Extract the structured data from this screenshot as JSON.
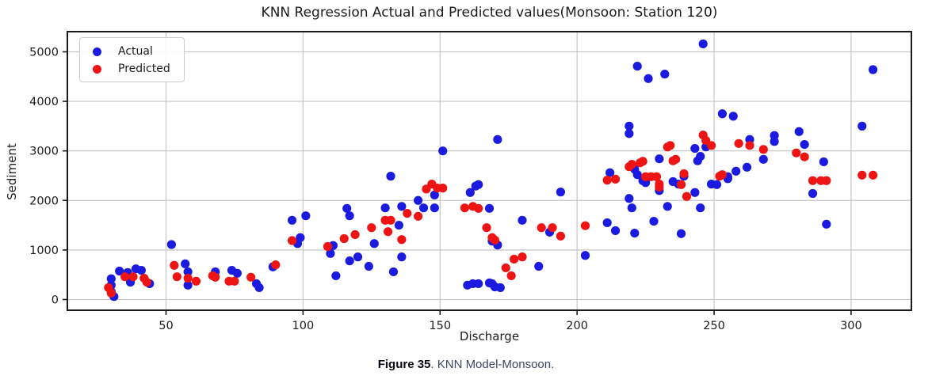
{
  "figure": {
    "caption_bold": "Figure 35",
    "caption_rest": ". KNN Model-Monsoon."
  },
  "chart_data": {
    "type": "scatter",
    "title": "KNN Regression Actual and Predicted values(Monsoon: Station 120)",
    "xlabel": "Discharge",
    "ylabel": "Sediment",
    "xlim": [
      14,
      322
    ],
    "ylim": [
      -216,
      5407
    ],
    "x_ticks": [
      50,
      100,
      150,
      200,
      250,
      300
    ],
    "y_ticks": [
      0,
      1000,
      2000,
      3000,
      4000,
      5000
    ],
    "grid": true,
    "legend_position": "upper left",
    "series": [
      {
        "name": "Actual",
        "color": "#1b1be0",
        "points": [
          [
            30,
            420
          ],
          [
            30,
            290
          ],
          [
            30,
            160
          ],
          [
            31,
            60
          ],
          [
            33,
            575
          ],
          [
            36,
            545
          ],
          [
            37,
            350
          ],
          [
            39,
            620
          ],
          [
            41,
            590
          ],
          [
            44,
            320
          ],
          [
            52,
            1110
          ],
          [
            57,
            720
          ],
          [
            58,
            560
          ],
          [
            58,
            290
          ],
          [
            68,
            560
          ],
          [
            74,
            590
          ],
          [
            76,
            530
          ],
          [
            83,
            320
          ],
          [
            84,
            240
          ],
          [
            89,
            660
          ],
          [
            96,
            1600
          ],
          [
            101,
            1690
          ],
          [
            98,
            1130
          ],
          [
            99,
            1250
          ],
          [
            110,
            930
          ],
          [
            111,
            1090
          ],
          [
            112,
            480
          ],
          [
            116,
            1840
          ],
          [
            117,
            1690
          ],
          [
            117,
            780
          ],
          [
            120,
            860
          ],
          [
            124,
            670
          ],
          [
            126,
            1130
          ],
          [
            130,
            1850
          ],
          [
            132,
            2490
          ],
          [
            133,
            560
          ],
          [
            135,
            1500
          ],
          [
            136,
            1880
          ],
          [
            136,
            860
          ],
          [
            142,
            2000
          ],
          [
            144,
            1850
          ],
          [
            148,
            1850
          ],
          [
            148,
            2110
          ],
          [
            151,
            3000
          ],
          [
            160,
            290
          ],
          [
            162,
            320
          ],
          [
            164,
            320
          ],
          [
            168,
            335
          ],
          [
            169,
            320
          ],
          [
            170,
            255
          ],
          [
            172,
            240
          ],
          [
            161,
            2160
          ],
          [
            163,
            2290
          ],
          [
            164,
            2320
          ],
          [
            168,
            1840
          ],
          [
            169,
            1180
          ],
          [
            171,
            1100
          ],
          [
            171,
            3230
          ],
          [
            180,
            1600
          ],
          [
            186,
            670
          ],
          [
            190,
            1360
          ],
          [
            194,
            2170
          ],
          [
            203,
            890
          ],
          [
            211,
            1550
          ],
          [
            212,
            2560
          ],
          [
            214,
            1390
          ],
          [
            219,
            2040
          ],
          [
            220,
            1850
          ],
          [
            221,
            1340
          ],
          [
            221,
            2630
          ],
          [
            222,
            2520
          ],
          [
            224,
            2400
          ],
          [
            225,
            2360
          ],
          [
            228,
            1580
          ],
          [
            230,
            2200
          ],
          [
            230,
            2840
          ],
          [
            233,
            1880
          ],
          [
            235,
            2380
          ],
          [
            237,
            2330
          ],
          [
            238,
            1330
          ],
          [
            239,
            2490
          ],
          [
            243,
            2160
          ],
          [
            243,
            3050
          ],
          [
            244,
            2800
          ],
          [
            245,
            1850
          ],
          [
            245,
            2890
          ],
          [
            246,
            5160
          ],
          [
            247,
            3080
          ],
          [
            249,
            2330
          ],
          [
            251,
            2320
          ],
          [
            253,
            3750
          ],
          [
            255,
            2440
          ],
          [
            255,
            2480
          ],
          [
            257,
            3700
          ],
          [
            258,
            2590
          ],
          [
            219,
            3500
          ],
          [
            219,
            3350
          ],
          [
            222,
            4710
          ],
          [
            226,
            4460
          ],
          [
            232,
            4550
          ],
          [
            262,
            2670
          ],
          [
            263,
            3230
          ],
          [
            268,
            2830
          ],
          [
            272,
            3310
          ],
          [
            272,
            3190
          ],
          [
            281,
            3390
          ],
          [
            283,
            3130
          ],
          [
            286,
            2140
          ],
          [
            290,
            2780
          ],
          [
            291,
            1520
          ],
          [
            304,
            3500
          ],
          [
            308,
            4640
          ]
        ]
      },
      {
        "name": "Predicted",
        "color": "#ef1414",
        "points": [
          [
            29,
            240
          ],
          [
            30,
            130
          ],
          [
            35,
            460
          ],
          [
            38,
            460
          ],
          [
            42,
            430
          ],
          [
            43,
            350
          ],
          [
            53,
            690
          ],
          [
            54,
            460
          ],
          [
            58,
            430
          ],
          [
            61,
            370
          ],
          [
            67,
            480
          ],
          [
            68,
            450
          ],
          [
            73,
            370
          ],
          [
            75,
            370
          ],
          [
            81,
            450
          ],
          [
            90,
            700
          ],
          [
            96,
            1190
          ],
          [
            109,
            1070
          ],
          [
            115,
            1230
          ],
          [
            119,
            1310
          ],
          [
            125,
            1450
          ],
          [
            130,
            1600
          ],
          [
            132,
            1600
          ],
          [
            131,
            1370
          ],
          [
            136,
            1210
          ],
          [
            138,
            1740
          ],
          [
            142,
            1680
          ],
          [
            145,
            2230
          ],
          [
            147,
            2330
          ],
          [
            149,
            2250
          ],
          [
            151,
            2250
          ],
          [
            159,
            1850
          ],
          [
            162,
            1880
          ],
          [
            164,
            1840
          ],
          [
            167,
            1450
          ],
          [
            169,
            1250
          ],
          [
            170,
            1200
          ],
          [
            174,
            640
          ],
          [
            176,
            480
          ],
          [
            177,
            815
          ],
          [
            180,
            860
          ],
          [
            187,
            1450
          ],
          [
            191,
            1450
          ],
          [
            194,
            1280
          ],
          [
            203,
            1490
          ],
          [
            211,
            2410
          ],
          [
            214,
            2430
          ],
          [
            219,
            2680
          ],
          [
            220,
            2730
          ],
          [
            223,
            2760
          ],
          [
            224,
            2790
          ],
          [
            225,
            2480
          ],
          [
            227,
            2480
          ],
          [
            229,
            2480
          ],
          [
            230,
            2330
          ],
          [
            230,
            2270
          ],
          [
            233,
            3080
          ],
          [
            234,
            3110
          ],
          [
            235,
            2800
          ],
          [
            236,
            2830
          ],
          [
            238,
            2320
          ],
          [
            239,
            2540
          ],
          [
            240,
            2080
          ],
          [
            246,
            3320
          ],
          [
            247,
            3210
          ],
          [
            249,
            3110
          ],
          [
            252,
            2490
          ],
          [
            253,
            2520
          ],
          [
            259,
            3150
          ],
          [
            263,
            3110
          ],
          [
            268,
            3030
          ],
          [
            280,
            2960
          ],
          [
            283,
            2880
          ],
          [
            286,
            2400
          ],
          [
            289,
            2400
          ],
          [
            291,
            2400
          ],
          [
            304,
            2510
          ],
          [
            308,
            2510
          ]
        ]
      }
    ]
  },
  "style": {
    "grid_color": "#c6c6c6",
    "spine_color": "#1a1a1a",
    "tick_label_color": "#1c1c1c",
    "marker_radius": 5.6
  }
}
